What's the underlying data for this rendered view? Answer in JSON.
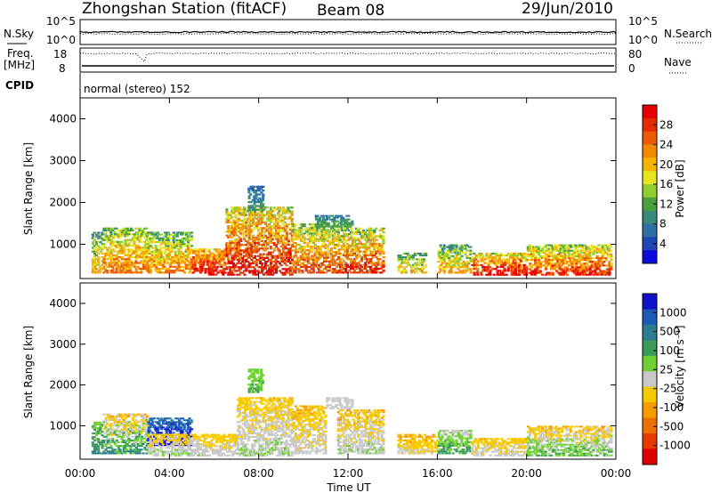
{
  "header": {
    "station": "Zhongshan Station (fitACF)",
    "beam": "Beam 08",
    "date": "29/Jun/2010"
  },
  "panels_top": {
    "nsky_label": "N.Sky",
    "nsearch_label": "N.Search",
    "freq_label_1": "Freq.",
    "freq_label_2": "[MHz]",
    "nave_label": "Nave",
    "cpid_label": "CPID",
    "cpid_text": "normal (stereo) 152",
    "nsky_ticks": [
      "10^5",
      "10^0"
    ],
    "nsearch_ticks": [
      "10^5",
      "10^0"
    ],
    "freq_ticks": [
      "18",
      "8"
    ],
    "nave_ticks": [
      "80",
      "0"
    ]
  },
  "x_axis": {
    "label": "Time UT",
    "ticks": [
      "00:00",
      "04:00",
      "08:00",
      "12:00",
      "16:00",
      "20:00",
      "00:00"
    ]
  },
  "colorbars": {
    "power": {
      "label": "Power [dB]",
      "ticks": [
        "28",
        "24",
        "20",
        "16",
        "12",
        "8",
        "4"
      ],
      "colors": [
        "#0b0bdc",
        "#1e49b4",
        "#2d6fa6",
        "#3a8a7a",
        "#4a9f3e",
        "#8fcf2e",
        "#e6e61e",
        "#f5b400",
        "#f28a00",
        "#ee5a00",
        "#e62b00",
        "#e60000"
      ]
    },
    "velocity": {
      "label": "Velocity [m s⁻¹]",
      "ticks": [
        "1000",
        "500",
        "100",
        "25",
        "-25",
        "-100",
        "-500",
        "-1000"
      ],
      "colors": [
        "#1010c8",
        "#1e5ab4",
        "#2a7d8c",
        "#3a9a5a",
        "#6fcf32",
        "#c8c8c8",
        "#f5c800",
        "#f59a00",
        "#ef6e00",
        "#e83a00",
        "#e00000"
      ]
    }
  },
  "chart_data": [
    {
      "type": "heatmap",
      "name": "power",
      "ylabel": "Slant Range [km]",
      "y_ticks": [
        "4000",
        "3000",
        "2000",
        "1000"
      ],
      "xlim": [
        0,
        24
      ],
      "ylim": [
        180,
        4500
      ],
      "clim": [
        0,
        30
      ],
      "regions": [
        {
          "t": [
            0.5,
            1.0
          ],
          "r": [
            300,
            1300
          ],
          "v": [
            4,
            22
          ]
        },
        {
          "t": [
            1.0,
            3.0
          ],
          "r": [
            300,
            1400
          ],
          "v": [
            8,
            24
          ]
        },
        {
          "t": [
            3.0,
            5.0
          ],
          "r": [
            300,
            1300
          ],
          "v": [
            6,
            24
          ]
        },
        {
          "t": [
            5.0,
            6.5
          ],
          "r": [
            250,
            900
          ],
          "v": [
            14,
            30
          ]
        },
        {
          "t": [
            6.5,
            9.5
          ],
          "r": [
            250,
            1900
          ],
          "v": [
            10,
            30
          ]
        },
        {
          "t": [
            9.5,
            11.5
          ],
          "r": [
            300,
            1500
          ],
          "v": [
            8,
            26
          ]
        },
        {
          "t": [
            10.5,
            12.2
          ],
          "r": [
            1400,
            1700
          ],
          "v": [
            4,
            12
          ]
        },
        {
          "t": [
            11.5,
            13.6
          ],
          "r": [
            300,
            1400
          ],
          "v": [
            8,
            28
          ]
        },
        {
          "t": [
            14.2,
            15.5
          ],
          "r": [
            300,
            800
          ],
          "v": [
            6,
            20
          ]
        },
        {
          "t": [
            16.0,
            17.5
          ],
          "r": [
            300,
            1000
          ],
          "v": [
            4,
            22
          ]
        },
        {
          "t": [
            17.5,
            20.0
          ],
          "r": [
            250,
            800
          ],
          "v": [
            10,
            30
          ]
        },
        {
          "t": [
            20.0,
            23.8
          ],
          "r": [
            250,
            1000
          ],
          "v": [
            8,
            28
          ]
        },
        {
          "t": [
            7.5,
            8.2
          ],
          "r": [
            1800,
            2400
          ],
          "v": [
            4,
            10
          ]
        }
      ]
    },
    {
      "type": "heatmap",
      "name": "velocity",
      "ylabel": "Slant Range [km]",
      "y_ticks": [
        "4000",
        "3000",
        "2000",
        "1000"
      ],
      "xlim": [
        0,
        24
      ],
      "ylim": [
        180,
        4500
      ],
      "clim": [
        -1000,
        1000
      ],
      "regions": [
        {
          "t": [
            0.5,
            1.0
          ],
          "r": [
            300,
            1100
          ],
          "v": [
            100,
            500
          ]
        },
        {
          "t": [
            1.0,
            3.0
          ],
          "r": [
            300,
            1300
          ],
          "v": [
            -500,
            500
          ]
        },
        {
          "t": [
            3.0,
            5.0
          ],
          "r": [
            500,
            1200
          ],
          "v": [
            500,
            1000
          ]
        },
        {
          "t": [
            3.0,
            5.5
          ],
          "r": [
            250,
            800
          ],
          "v": [
            -300,
            100
          ]
        },
        {
          "t": [
            5.5,
            7.0
          ],
          "r": [
            250,
            800
          ],
          "v": [
            -200,
            -25
          ]
        },
        {
          "t": [
            7.0,
            9.5
          ],
          "r": [
            250,
            1700
          ],
          "v": [
            -300,
            100
          ]
        },
        {
          "t": [
            9.5,
            11.0
          ],
          "r": [
            300,
            1500
          ],
          "v": [
            -400,
            50
          ]
        },
        {
          "t": [
            11.0,
            12.2
          ],
          "r": [
            1400,
            1700
          ],
          "v": [
            -25,
            25
          ]
        },
        {
          "t": [
            11.5,
            13.6
          ],
          "r": [
            300,
            1400
          ],
          "v": [
            -400,
            100
          ]
        },
        {
          "t": [
            14.2,
            16.0
          ],
          "r": [
            300,
            800
          ],
          "v": [
            -400,
            -50
          ]
        },
        {
          "t": [
            16.0,
            17.5
          ],
          "r": [
            300,
            900
          ],
          "v": [
            -100,
            400
          ]
        },
        {
          "t": [
            17.5,
            20.0
          ],
          "r": [
            250,
            700
          ],
          "v": [
            -300,
            0
          ]
        },
        {
          "t": [
            20.0,
            23.8
          ],
          "r": [
            250,
            1000
          ],
          "v": [
            -400,
            300
          ]
        },
        {
          "t": [
            7.5,
            8.2
          ],
          "r": [
            1800,
            2400
          ],
          "v": [
            100,
            300
          ]
        }
      ]
    }
  ]
}
